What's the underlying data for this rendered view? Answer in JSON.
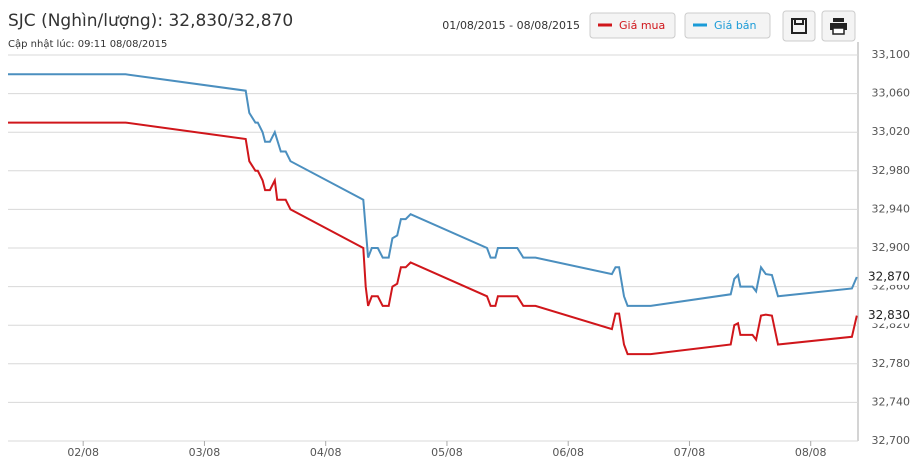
{
  "chart_data": {
    "type": "line",
    "title": "SJC (Nghìn/lượng): 32,830/32,870",
    "subtitle": "Cập nhật lúc: 09:11 08/08/2015",
    "date_range": "01/08/2015 - 08/08/2015",
    "xlim": [
      1.38,
      8.39
    ],
    "xticks": [
      {
        "value": 2,
        "label": "02/08"
      },
      {
        "value": 3,
        "label": "03/08"
      },
      {
        "value": 4,
        "label": "04/08"
      },
      {
        "value": 5,
        "label": "05/08"
      },
      {
        "value": 6,
        "label": "06/08"
      },
      {
        "value": 7,
        "label": "07/08"
      },
      {
        "value": 8,
        "label": "08/08"
      }
    ],
    "ylim": [
      32700,
      33100
    ],
    "yticks": [
      {
        "value": 32700,
        "label": "32,700"
      },
      {
        "value": 32740,
        "label": "32,740"
      },
      {
        "value": 32780,
        "label": "32,780"
      },
      {
        "value": 32820,
        "label": "32,820"
      },
      {
        "value": 32860,
        "label": "32,860"
      },
      {
        "value": 32900,
        "label": "32,900"
      },
      {
        "value": 32940,
        "label": "32,940"
      },
      {
        "value": 32980,
        "label": "32,980"
      },
      {
        "value": 33020,
        "label": "33,020"
      },
      {
        "value": 33060,
        "label": "33,060"
      },
      {
        "value": 33100,
        "label": "33,100"
      }
    ],
    "grid": true,
    "series": [
      {
        "name": "Giá mua",
        "color": "#d0161b",
        "legend_color": "#d0161b",
        "end_label": "32,830",
        "x": [
          1.38,
          2.35,
          3.34,
          3.37,
          3.42,
          3.44,
          3.48,
          3.5,
          3.54,
          3.58,
          3.6,
          3.67,
          3.71,
          4.31,
          4.33,
          4.35,
          4.38,
          4.43,
          4.47,
          4.52,
          4.55,
          4.59,
          4.62,
          4.66,
          4.7,
          5.33,
          5.36,
          5.4,
          5.42,
          5.58,
          5.63,
          5.73,
          6.36,
          6.39,
          6.42,
          6.46,
          6.49,
          6.68,
          7.34,
          7.37,
          7.4,
          7.42,
          7.52,
          7.55,
          7.59,
          7.63,
          7.68,
          7.73,
          8.34,
          8.38
        ],
        "values": [
          33030,
          33030,
          33013,
          32990,
          32980,
          32980,
          32970,
          32960,
          32960,
          32970,
          32950,
          32950,
          32940,
          32900,
          32860,
          32840,
          32850,
          32850,
          32840,
          32840,
          32860,
          32863,
          32880,
          32880,
          32885,
          32850,
          32840,
          32840,
          32850,
          32850,
          32840,
          32840,
          32816,
          32832,
          32832,
          32800,
          32790,
          32790,
          32800,
          32820,
          32822,
          32810,
          32810,
          32805,
          32830,
          32831,
          32830,
          32800,
          32808,
          32830
        ]
      },
      {
        "name": "Giá bán",
        "color": "#4b8fbf",
        "legend_color": "#1a9bd7",
        "end_label": "32,870",
        "x": [
          1.38,
          2.35,
          3.34,
          3.37,
          3.42,
          3.44,
          3.48,
          3.5,
          3.54,
          3.58,
          3.63,
          3.67,
          3.71,
          4.31,
          4.35,
          4.38,
          4.43,
          4.47,
          4.52,
          4.55,
          4.59,
          4.62,
          4.66,
          4.7,
          5.33,
          5.36,
          5.4,
          5.42,
          5.58,
          5.63,
          5.73,
          6.36,
          6.39,
          6.42,
          6.46,
          6.49,
          6.68,
          7.34,
          7.37,
          7.4,
          7.42,
          7.52,
          7.55,
          7.59,
          7.63,
          7.68,
          7.73,
          8.34,
          8.38
        ],
        "values": [
          33080,
          33080,
          33063,
          33040,
          33030,
          33030,
          33020,
          33010,
          33010,
          33020,
          33000,
          33000,
          32990,
          32950,
          32890,
          32900,
          32900,
          32890,
          32890,
          32910,
          32913,
          32930,
          32930,
          32935,
          32900,
          32890,
          32890,
          32900,
          32900,
          32890,
          32890,
          32873,
          32880,
          32880,
          32850,
          32840,
          32840,
          32852,
          32868,
          32872,
          32860,
          32860,
          32855,
          32880,
          32873,
          32872,
          32850,
          32858,
          32870
        ]
      }
    ]
  }
}
